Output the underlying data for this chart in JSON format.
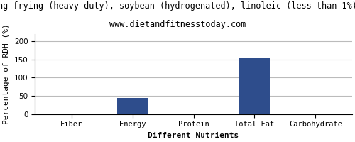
{
  "title": "ng frying (heavy duty), soybean (hydrogenated), linoleic (less than 1%)",
  "subtitle": "www.dietandfitnesstoday.com",
  "xlabel": "Different Nutrients",
  "ylabel": "Percentage of RDH (%)",
  "categories": [
    "Fiber",
    "Energy",
    "Protein",
    "Total Fat",
    "Carbohydrate"
  ],
  "values": [
    0,
    45,
    0,
    155,
    0
  ],
  "bar_color": "#2e4d8c",
  "ylim": [
    0,
    220
  ],
  "yticks": [
    0,
    50,
    100,
    150,
    200
  ],
  "title_fontsize": 8.5,
  "subtitle_fontsize": 8.5,
  "axis_label_fontsize": 8,
  "tick_fontsize": 7.5,
  "background_color": "#ffffff",
  "grid_color": "#bbbbbb"
}
